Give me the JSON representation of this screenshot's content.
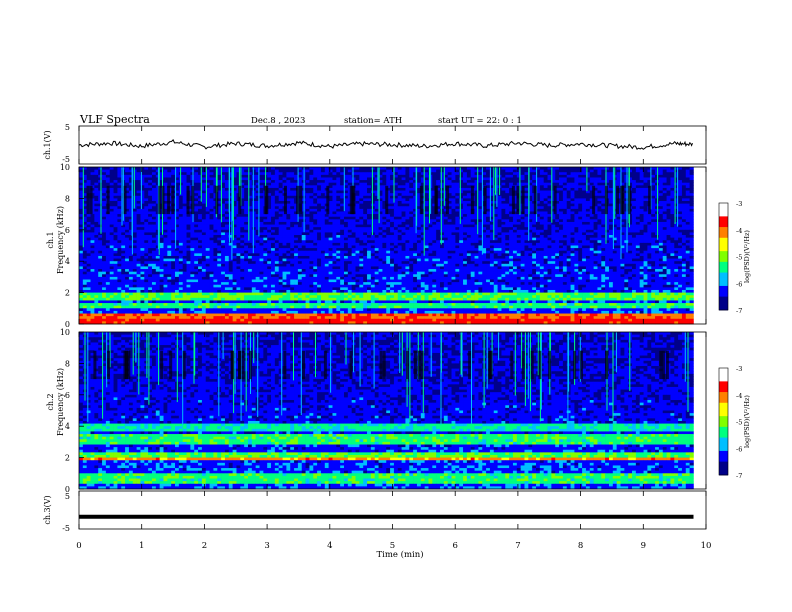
{
  "header": {
    "title": "VLF  Spectra",
    "date": "Dec.8  , 2023",
    "station": "station= ATH",
    "start": "start  UT  =    22: 0   : 1"
  },
  "colors": {
    "colormap": [
      "#00008b",
      "#0000ff",
      "#00bfff",
      "#00ff80",
      "#80ff00",
      "#ffff00",
      "#ff8000",
      "#ff0000",
      "#ffffff"
    ],
    "trace": "#000000",
    "axes": "#000000"
  },
  "chart_data": [
    {
      "type": "line",
      "name": "ch1-waveform",
      "ylabel": "ch.1(V)",
      "ylim": [
        -5,
        5
      ],
      "yticks": [
        "5",
        "-5"
      ],
      "xlim": [
        0,
        10
      ],
      "x": [
        0,
        0.5,
        1,
        1.5,
        2,
        2.5,
        3,
        3.5,
        4,
        4.5,
        5,
        5.5,
        6,
        6.5,
        7,
        7.5,
        8,
        8.5,
        9,
        9.5,
        9.8
      ],
      "values": [
        0.0,
        0.5,
        -0.3,
        0.8,
        -0.5,
        0.4,
        -0.2,
        0.6,
        -0.4,
        0.3,
        0.1,
        -0.3,
        0.4,
        -0.2,
        0.5,
        -0.1,
        0.3,
        -0.2,
        -0.6,
        0.4,
        0.2
      ]
    },
    {
      "type": "heatmap",
      "name": "ch1-spectrogram",
      "ylabel": "ch.1\nFrequency (kHz)",
      "ylim": [
        0,
        10
      ],
      "yticks": [
        "0",
        "2",
        "4",
        "6",
        "8",
        "10"
      ],
      "xlim": [
        0,
        9.8
      ],
      "colorbar": {
        "label": "log(PSD)(V²/Hz)",
        "range": [
          -7,
          -3
        ],
        "ticks": [
          "-3",
          "-4",
          "-5",
          "-6",
          "-7"
        ]
      }
    },
    {
      "type": "heatmap",
      "name": "ch2-spectrogram",
      "ylabel": "ch.2\nFrequency (kHz)",
      "ylim": [
        0,
        10
      ],
      "yticks": [
        "0",
        "2",
        "4",
        "6",
        "8",
        "10"
      ],
      "xlim": [
        0,
        9.8
      ],
      "colorbar": {
        "label": "log(PSD)(V²/Hz)",
        "range": [
          -7,
          -3
        ],
        "ticks": [
          "-3",
          "-4",
          "-5",
          "-6",
          "-7"
        ]
      }
    },
    {
      "type": "line",
      "name": "ch3-waveform",
      "ylabel": "ch.3(V)",
      "ylim": [
        -5,
        5
      ],
      "yticks": [
        "5",
        "-5"
      ],
      "xlim": [
        0,
        10
      ],
      "x": [
        0,
        9.8
      ],
      "values": [
        -1.8,
        -1.8
      ]
    }
  ],
  "xaxis": {
    "label": "Time  (min)",
    "ticks": [
      "0",
      "1",
      "2",
      "3",
      "4",
      "5",
      "6",
      "7",
      "8",
      "9",
      "10"
    ]
  }
}
